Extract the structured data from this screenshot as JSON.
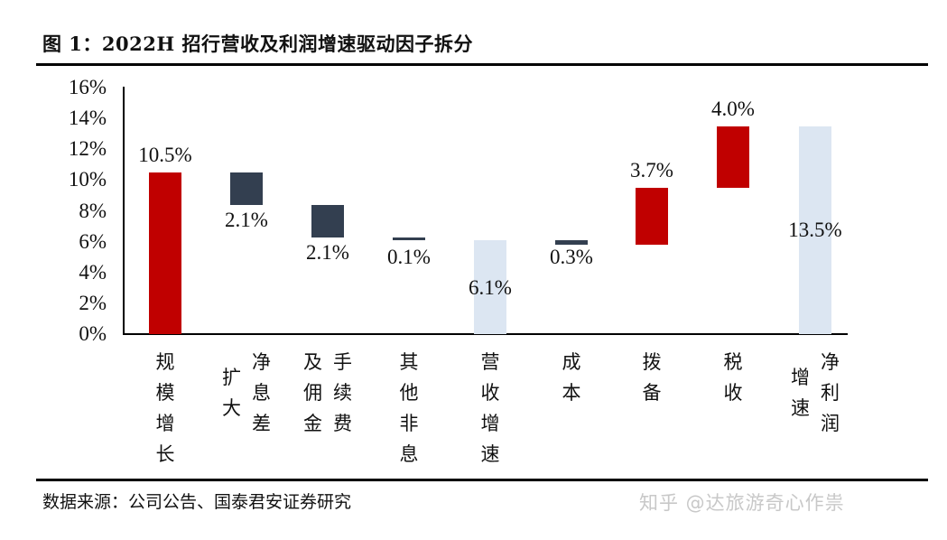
{
  "title": "图 1：2022H 招行营收及利润增速驱动因子拆分",
  "source": "数据来源：公司公告、国泰君安证券研究",
  "watermark": "知乎 @达旅游奇心作祟",
  "colors": {
    "positive": "#c00000",
    "negative": "#333f50",
    "total": "#dce6f2",
    "axis": "#000000"
  },
  "y_ticks": [
    "16%",
    "14%",
    "12%",
    "10%",
    "8%",
    "6%",
    "4%",
    "2%",
    "0%"
  ],
  "bars": [
    {
      "category": "规模增长",
      "label": "10.5%",
      "kind": "positive",
      "base": 0.0,
      "top": 10.5,
      "cat_cols": [
        "规模增长"
      ]
    },
    {
      "category": "净息差扩大",
      "label": "2.1%",
      "kind": "negative",
      "base": 8.4,
      "top": 10.5,
      "cat_cols": [
        "扩大",
        "净息差"
      ]
    },
    {
      "category": "手续费及佣金",
      "label": "2.1%",
      "kind": "negative",
      "base": 6.3,
      "top": 8.4,
      "cat_cols": [
        "及佣金",
        "手续费"
      ]
    },
    {
      "category": "其他非息",
      "label": "0.1%",
      "kind": "negative",
      "base": 6.2,
      "top": 6.3,
      "cat_cols": [
        "其他非息"
      ]
    },
    {
      "category": "营收增速",
      "label": "6.1%",
      "kind": "total",
      "base": 0.0,
      "top": 6.1,
      "cat_cols": [
        "营收增速"
      ]
    },
    {
      "category": "成本",
      "label": "0.3%",
      "kind": "negative",
      "base": 5.8,
      "top": 6.1,
      "cat_cols": [
        "成本"
      ]
    },
    {
      "category": "拨备",
      "label": "3.7%",
      "kind": "positive",
      "base": 5.8,
      "top": 9.5,
      "cat_cols": [
        "拨备"
      ]
    },
    {
      "category": "税收",
      "label": "4.0%",
      "kind": "positive",
      "base": 9.5,
      "top": 13.5,
      "cat_cols": [
        "税收"
      ]
    },
    {
      "category": "净利润增速",
      "label": "13.5%",
      "kind": "total",
      "base": 0.0,
      "top": 13.5,
      "cat_cols": [
        "增速",
        "净利润"
      ]
    }
  ],
  "chart_data": {
    "type": "bar",
    "subtype": "waterfall",
    "title": "2022H 招行营收及利润增速驱动因子拆分",
    "categories": [
      "规模增长",
      "净息差扩大",
      "手续费及佣金",
      "其他非息",
      "营收增速",
      "成本",
      "拨备",
      "税收",
      "净利润增速"
    ],
    "values": [
      10.5,
      -2.1,
      -2.1,
      -0.1,
      6.1,
      -0.3,
      3.7,
      4.0,
      13.5
    ],
    "data_labels": [
      "10.5%",
      "2.1%",
      "2.1%",
      "0.1%",
      "6.1%",
      "0.3%",
      "3.7%",
      "4.0%",
      "13.5%"
    ],
    "xlabel": "",
    "ylabel": "",
    "ylim": [
      0,
      16
    ],
    "yticks": [
      0,
      2,
      4,
      6,
      8,
      10,
      12,
      14,
      16
    ],
    "grid": false,
    "legend": null
  }
}
